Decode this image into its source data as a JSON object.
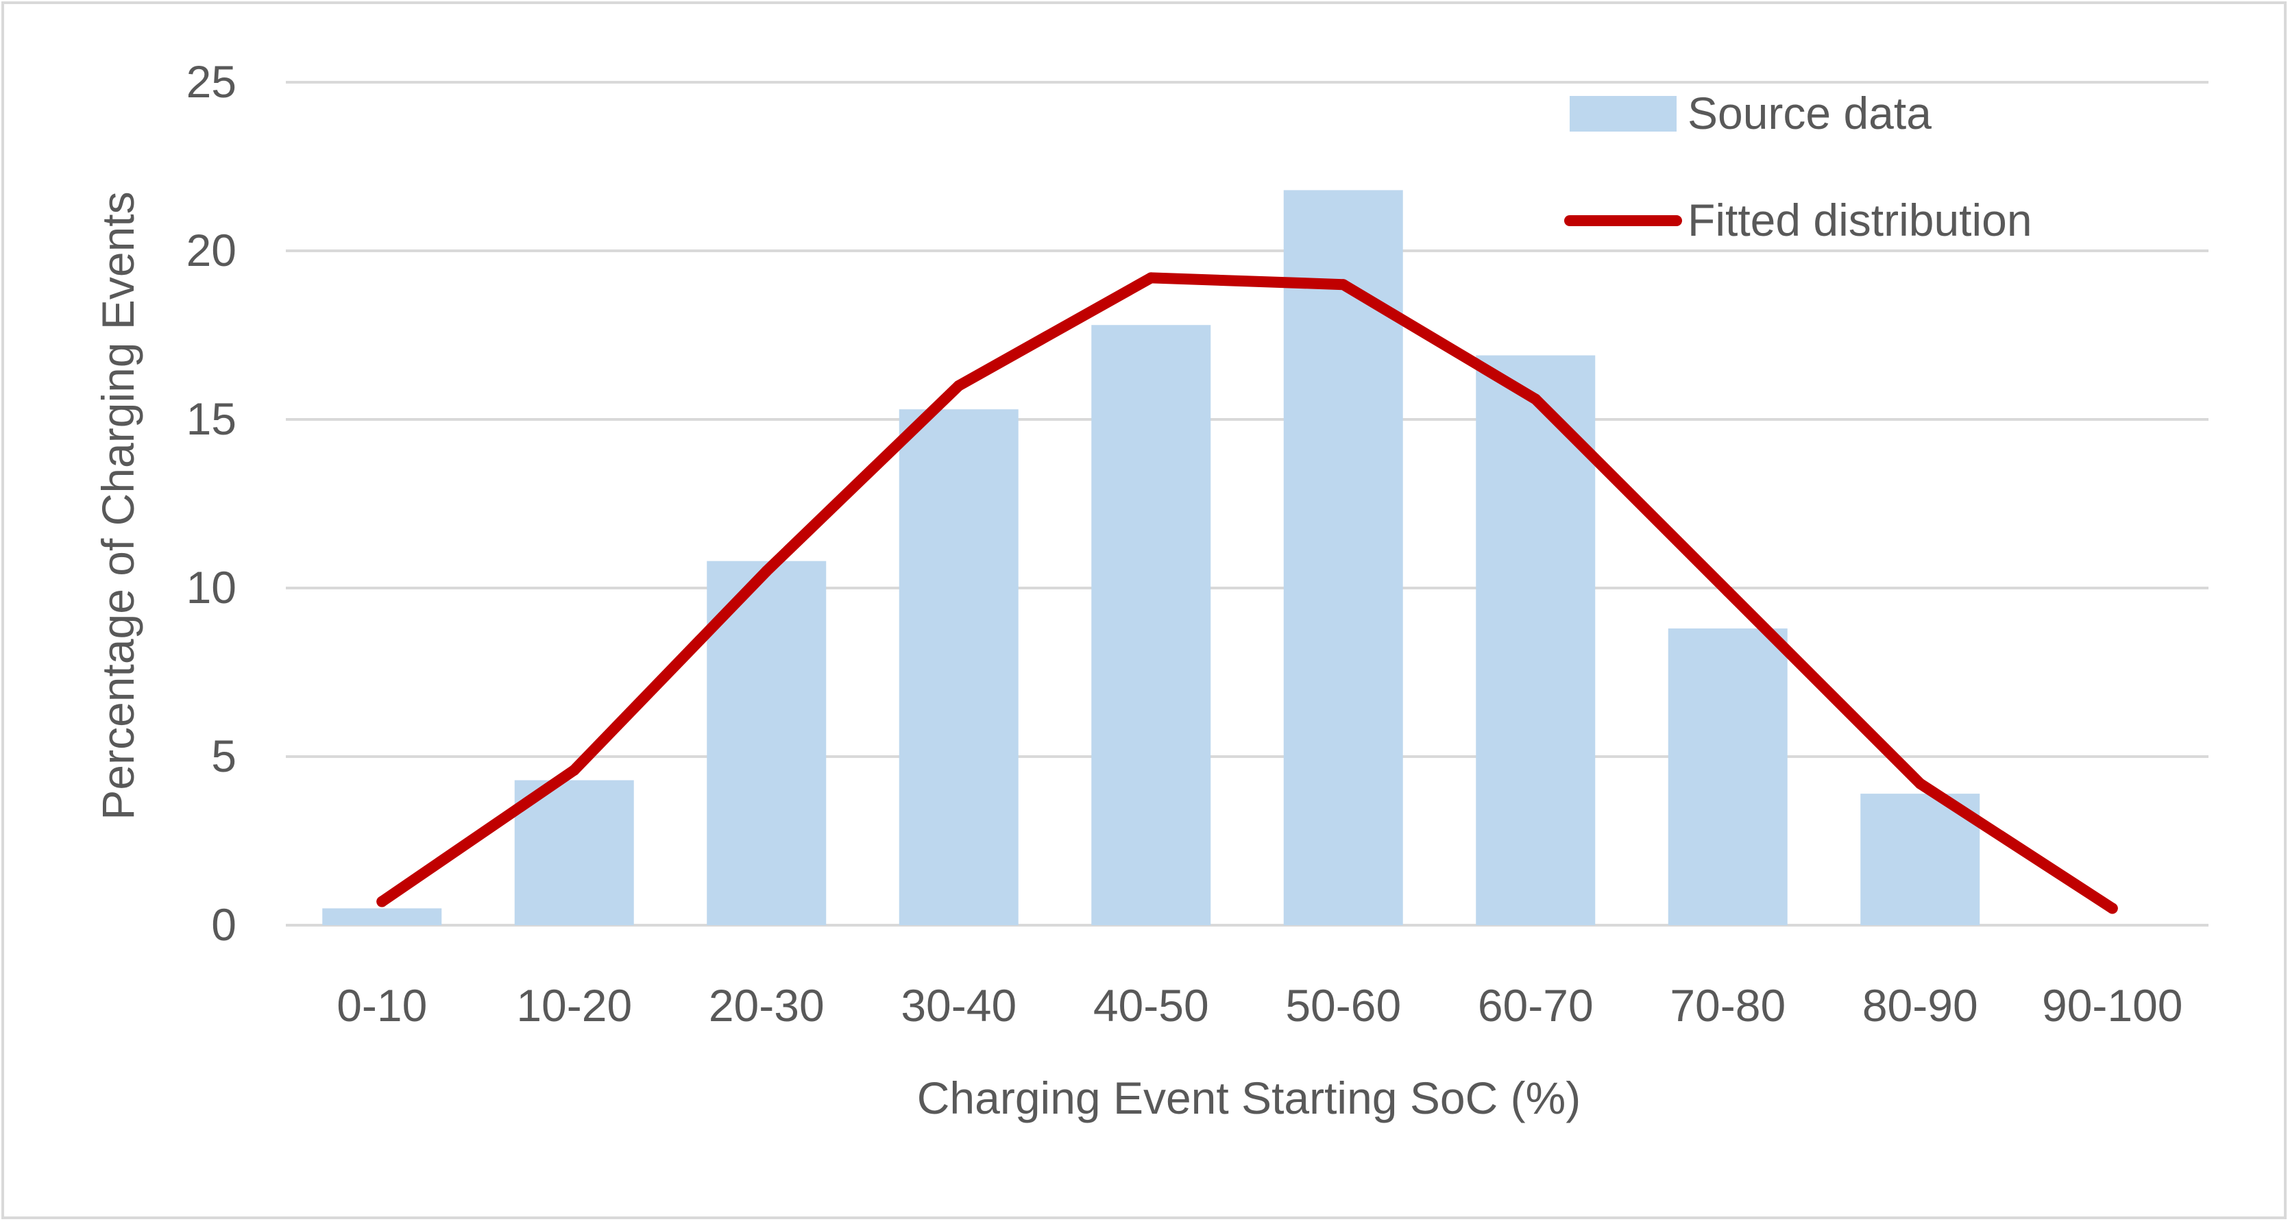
{
  "chart_data": {
    "type": "bar",
    "title": "",
    "xlabel": "Charging Event Starting SoC (%)",
    "ylabel": "Percentage of Charging Events",
    "categories": [
      "0-10",
      "10-20",
      "20-30",
      "30-40",
      "40-50",
      "50-60",
      "60-70",
      "70-80",
      "80-90",
      "90-100"
    ],
    "ylim": [
      0,
      25
    ],
    "yticks": [
      "0",
      "5",
      "10",
      "15",
      "20",
      "25"
    ],
    "grid": true,
    "legend_position": "top-right",
    "series": [
      {
        "name": "Source data",
        "kind": "bar",
        "color": "#bdd7ee",
        "values": [
          0.5,
          4.3,
          10.8,
          15.3,
          17.8,
          21.8,
          16.9,
          8.8,
          3.9,
          0
        ]
      },
      {
        "name": "Fitted distribution",
        "kind": "line",
        "color": "#c00000",
        "values": [
          0.7,
          4.6,
          10.5,
          16.0,
          19.2,
          19.0,
          15.6,
          9.9,
          4.2,
          0.5
        ]
      }
    ],
    "legend": {
      "bar_label": "Source data",
      "line_label": "Fitted distribution"
    }
  },
  "colors": {
    "frame": "#d9d9d9",
    "grid": "#d9d9d9",
    "text": "#595959",
    "bar": "#bdd7ee",
    "line": "#c00000"
  }
}
